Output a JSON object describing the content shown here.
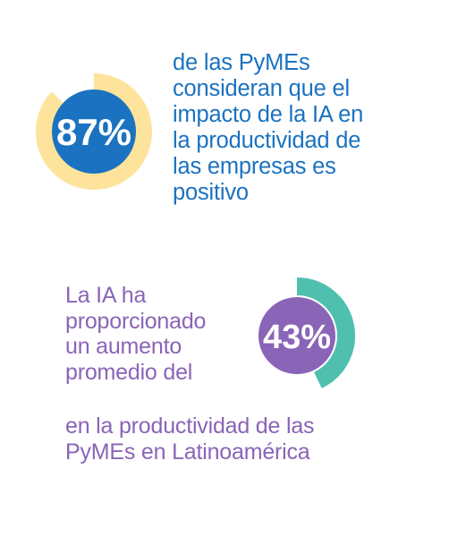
{
  "chart_data": [
    {
      "type": "donut",
      "value": 87,
      "label": "87%",
      "text": [
        "de las PyMEs",
        "consideran que el",
        "impacto de la IA en",
        "la productividad de",
        "las empresas es",
        "positivo"
      ],
      "colors": {
        "ring": "#fde39b",
        "center": "#1b72c0",
        "text": "#1b72c0"
      }
    },
    {
      "type": "donut",
      "value": 43,
      "label": "43%",
      "text_before": [
        "La IA ha",
        "proporcionado",
        "un aumento",
        "promedio del"
      ],
      "text_after": [
        "en la productividad de las",
        "PyMEs en Latinoamérica"
      ],
      "colors": {
        "ring": "#4fbfae",
        "center": "#8a64b7",
        "text": "#8a64b7"
      }
    }
  ]
}
